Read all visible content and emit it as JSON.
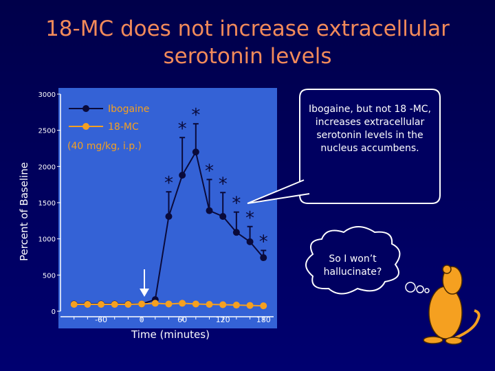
{
  "title": "18-MC does not increase extracellular serotonin levels",
  "chart_data": {
    "type": "line",
    "x_label": "Time (minutes)",
    "y_label": "Percent of Baseline",
    "x": [
      -100,
      -80,
      -60,
      -40,
      -20,
      0,
      20,
      40,
      60,
      80,
      100,
      120,
      140,
      160,
      180
    ],
    "series": [
      {
        "name": "Ibogaine",
        "color": "#0a0a3a",
        "values": [
          100,
          100,
          100,
          100,
          100,
          100,
          160,
          1310,
          1880,
          2200,
          1390,
          1310,
          1090,
          960,
          740
        ],
        "errors": [
          null,
          null,
          null,
          null,
          null,
          null,
          null,
          340,
          520,
          390,
          430,
          330,
          280,
          210,
          100
        ]
      },
      {
        "name": "18-MC",
        "color": "#f5a020",
        "values": [
          95,
          95,
          95,
          95,
          95,
          100,
          110,
          100,
          110,
          100,
          95,
          90,
          85,
          80,
          75
        ]
      }
    ],
    "legend_note": "(40 mg/kg, i.p.)",
    "annotations": [
      {
        "text": "*",
        "x": 40
      },
      {
        "text": "*",
        "x": 60
      },
      {
        "text": "*",
        "x": 80
      },
      {
        "text": "*",
        "x": 100
      },
      {
        "text": "*",
        "x": 120
      },
      {
        "text": "*",
        "x": 140
      },
      {
        "text": "*",
        "x": 160
      },
      {
        "text": "*",
        "x": 180
      }
    ],
    "xlim": [
      -120,
      195
    ],
    "xticks": [
      -60,
      0,
      60,
      120,
      180
    ],
    "x_minor_ticks": [
      -100,
      -80,
      -40,
      -20,
      20,
      40,
      80,
      100,
      140,
      160
    ],
    "ylim": [
      0,
      3000
    ],
    "yticks": [
      0,
      500,
      1000,
      1500,
      2000,
      2500,
      3000
    ]
  },
  "callout": "Ibogaine, but not 18 -MC, increases extracellular serotonin levels in the nucleus accumbens.",
  "thought": "So I won’t hallucinate?"
}
